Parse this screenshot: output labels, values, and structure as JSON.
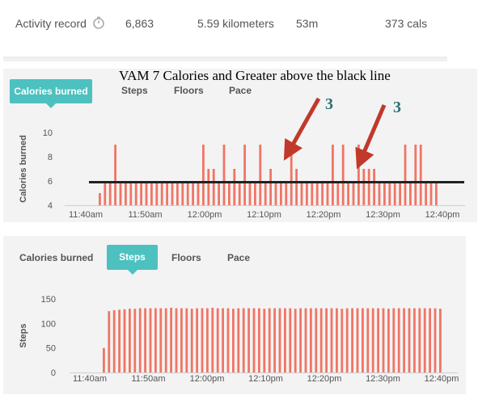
{
  "summary": {
    "label": "Activity record",
    "steps": "6,863",
    "distance": "5.59 kilometers",
    "duration": "53m",
    "calories": "373 cals",
    "icon": "timer-icon"
  },
  "annotation": {
    "caption": "VAM 7 Calories and Greater above the black line",
    "marker_left": "3",
    "marker_right": "3"
  },
  "panel1": {
    "tabs": [
      "Calories burned",
      "Steps",
      "Floors",
      "Pace"
    ],
    "active_tab": "Calories burned"
  },
  "panel2": {
    "tabs": [
      "Calories burned",
      "Steps",
      "Floors",
      "Pace"
    ],
    "active_tab": "Steps"
  },
  "colors": {
    "bar": "#f07565",
    "accent": "#4cc1c0",
    "reference_line": "#222222"
  },
  "chart_data": [
    {
      "type": "bar",
      "ylabel": "Calories burned",
      "xlabel": "",
      "ylim": [
        4,
        10
      ],
      "yticks": [
        4,
        6,
        8,
        10
      ],
      "xticks": [
        "11:40am",
        "11:50am",
        "12:00pm",
        "12:10pm",
        "12:20pm",
        "12:30pm",
        "12:40pm"
      ],
      "x_start": "11:41am",
      "x_interval_minutes": 1,
      "values": [
        5,
        6,
        6,
        9,
        6,
        6,
        6,
        6,
        6,
        6,
        6,
        6,
        6,
        6,
        6,
        6,
        6,
        6,
        6,
        6,
        9,
        7,
        7,
        6,
        9,
        6,
        7,
        6,
        9,
        6,
        6,
        9,
        6,
        7,
        6,
        6,
        6,
        9,
        7,
        6,
        6,
        6,
        6,
        6,
        6,
        9,
        6,
        9,
        6,
        6,
        9,
        7,
        7,
        7,
        6,
        6,
        6,
        6,
        6,
        9,
        6,
        9,
        9,
        6,
        6,
        6
      ],
      "reference_line": {
        "y": 5.9,
        "color": "#222222"
      }
    },
    {
      "type": "bar",
      "ylabel": "Steps",
      "xlabel": "",
      "ylim": [
        0,
        150
      ],
      "yticks": [
        0,
        50,
        100,
        150
      ],
      "xticks": [
        "11:40am",
        "11:50am",
        "12:00pm",
        "12:10pm",
        "12:20pm",
        "12:30pm",
        "12:40pm"
      ],
      "x_start": "11:41am",
      "x_interval_minutes": 1,
      "values": [
        50,
        125,
        127,
        128,
        129,
        130,
        130,
        131,
        131,
        131,
        131,
        131,
        131,
        132,
        131,
        131,
        131,
        130,
        131,
        131,
        131,
        132,
        131,
        131,
        131,
        130,
        131,
        131,
        131,
        131,
        131,
        130,
        131,
        131,
        131,
        131,
        131,
        130,
        131,
        131,
        131,
        131,
        131,
        131,
        131,
        131,
        130,
        131,
        131,
        131,
        131,
        131,
        131,
        131,
        131,
        130,
        131,
        131,
        131,
        131,
        131,
        131,
        131,
        131,
        131,
        130
      ]
    }
  ]
}
